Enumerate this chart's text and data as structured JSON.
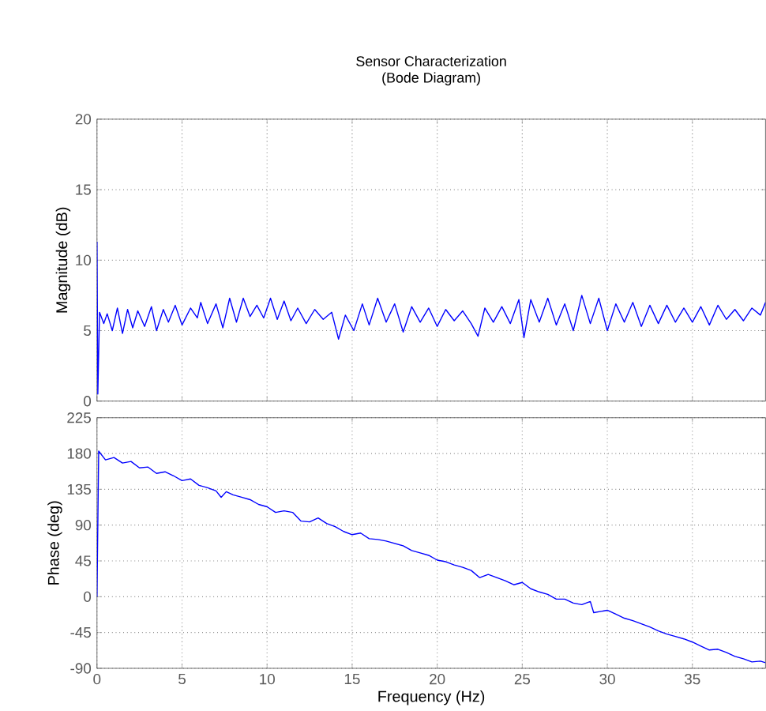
{
  "chart_data": [
    {
      "type": "line",
      "title": "Sensor Characterization",
      "subtitle": "(Bode Diagram)",
      "ylabel": "Magnitude (dB)",
      "xlim": [
        0,
        39.3
      ],
      "xticks": [
        0,
        5,
        10,
        15,
        20,
        25,
        30,
        35
      ],
      "ylim": [
        0,
        20
      ],
      "yticks": [
        0,
        5,
        10,
        15,
        20
      ],
      "grid": true,
      "tick_labels": "y",
      "series": [
        {
          "color": "#0000ff",
          "x": [
            0,
            0.05,
            0.15,
            0.4,
            0.6,
            0.9,
            1.2,
            1.5,
            1.8,
            2.1,
            2.4,
            2.8,
            3.2,
            3.5,
            3.9,
            4.2,
            4.6,
            5.0,
            5.5,
            5.9,
            6.1,
            6.5,
            7.0,
            7.4,
            7.8,
            8.2,
            8.6,
            9.0,
            9.4,
            9.8,
            10.2,
            10.6,
            11.0,
            11.4,
            11.8,
            12.3,
            12.8,
            13.3,
            13.8,
            14.2,
            14.6,
            15.1,
            15.6,
            16.0,
            16.5,
            17.0,
            17.5,
            18.0,
            18.5,
            19.0,
            19.5,
            20.0,
            20.5,
            21.0,
            21.5,
            22.0,
            22.4,
            22.8,
            23.3,
            23.8,
            24.3,
            24.8,
            25.1,
            25.5,
            26.0,
            26.5,
            27.0,
            27.5,
            28.0,
            28.5,
            29.0,
            29.5,
            30.0,
            30.5,
            31.0,
            31.5,
            32.0,
            32.5,
            33.0,
            33.5,
            34.0,
            34.5,
            35.0,
            35.5,
            36.0,
            36.5,
            37.0,
            37.5,
            38.0,
            38.5,
            39.0,
            39.3
          ],
          "values": [
            11.3,
            0.5,
            6.3,
            5.5,
            6.2,
            5.0,
            6.6,
            4.8,
            6.5,
            5.2,
            6.4,
            5.3,
            6.7,
            5.0,
            6.5,
            5.6,
            6.8,
            5.4,
            6.6,
            5.9,
            7.0,
            5.5,
            6.9,
            5.2,
            7.3,
            5.6,
            7.3,
            6.0,
            6.8,
            5.9,
            7.3,
            5.8,
            7.1,
            5.7,
            6.6,
            5.5,
            6.5,
            5.8,
            6.3,
            4.4,
            6.1,
            5.0,
            6.9,
            5.4,
            7.3,
            5.6,
            6.9,
            4.9,
            6.7,
            5.6,
            6.6,
            5.3,
            6.5,
            5.7,
            6.4,
            5.5,
            4.6,
            6.6,
            5.6,
            6.7,
            5.5,
            7.2,
            4.5,
            7.2,
            5.6,
            7.3,
            5.4,
            6.9,
            5.0,
            7.5,
            5.5,
            7.3,
            5.0,
            6.9,
            5.6,
            7.0,
            5.3,
            6.8,
            5.5,
            6.8,
            5.6,
            6.6,
            5.6,
            6.7,
            5.4,
            6.8,
            5.8,
            6.5,
            5.7,
            6.6,
            6.1,
            7.0
          ]
        }
      ]
    },
    {
      "type": "line",
      "xlabel": "Frequency  (Hz)",
      "ylabel": "Phase (deg)",
      "xlim": [
        0,
        39.3
      ],
      "xticks": [
        0,
        5,
        10,
        15,
        20,
        25,
        30,
        35
      ],
      "ylim": [
        -90,
        225
      ],
      "yticks": [
        -90,
        -45,
        0,
        45,
        90,
        135,
        180,
        225
      ],
      "grid": true,
      "series": [
        {
          "color": "#0000ff",
          "x": [
            0,
            0.1,
            0.5,
            1,
            1.5,
            2,
            2.5,
            3,
            3.5,
            4,
            4.5,
            5,
            5.5,
            6,
            6.5,
            7,
            7.3,
            7.6,
            8,
            8.5,
            9,
            9.5,
            10,
            10.5,
            11,
            11.5,
            12,
            12.5,
            13,
            13.5,
            14,
            14.5,
            15,
            15.5,
            16,
            16.5,
            17,
            17.5,
            18,
            18.5,
            19,
            19.5,
            20,
            20.5,
            21,
            21.5,
            22,
            22.5,
            23,
            23.5,
            24,
            24.5,
            25,
            25.5,
            26,
            26.5,
            27,
            27.5,
            28,
            28.5,
            29,
            29.2,
            30,
            30.5,
            31,
            31.5,
            32,
            32.5,
            33,
            33.5,
            34,
            34.5,
            35,
            35.5,
            36,
            36.5,
            37,
            37.5,
            38,
            38.5,
            39,
            39.3
          ],
          "values": [
            0,
            183,
            172,
            175,
            168,
            170,
            162,
            163,
            155,
            157,
            152,
            146,
            148,
            140,
            137,
            133,
            125,
            132,
            128,
            125,
            122,
            116,
            113,
            106,
            108,
            106,
            95,
            94,
            99,
            92,
            88,
            82,
            78,
            80,
            73,
            72,
            70,
            67,
            64,
            58,
            55,
            52,
            46,
            44,
            40,
            37,
            33,
            24,
            28,
            24,
            20,
            15,
            18,
            10,
            6,
            3,
            -3,
            -3,
            -8,
            -10,
            -6,
            -20,
            -17,
            -22,
            -27,
            -30,
            -34,
            -38,
            -43,
            -47,
            -50,
            -53,
            -57,
            -62,
            -67,
            -66,
            -70,
            -75,
            -78,
            -82,
            -81,
            -83
          ]
        }
      ]
    }
  ]
}
